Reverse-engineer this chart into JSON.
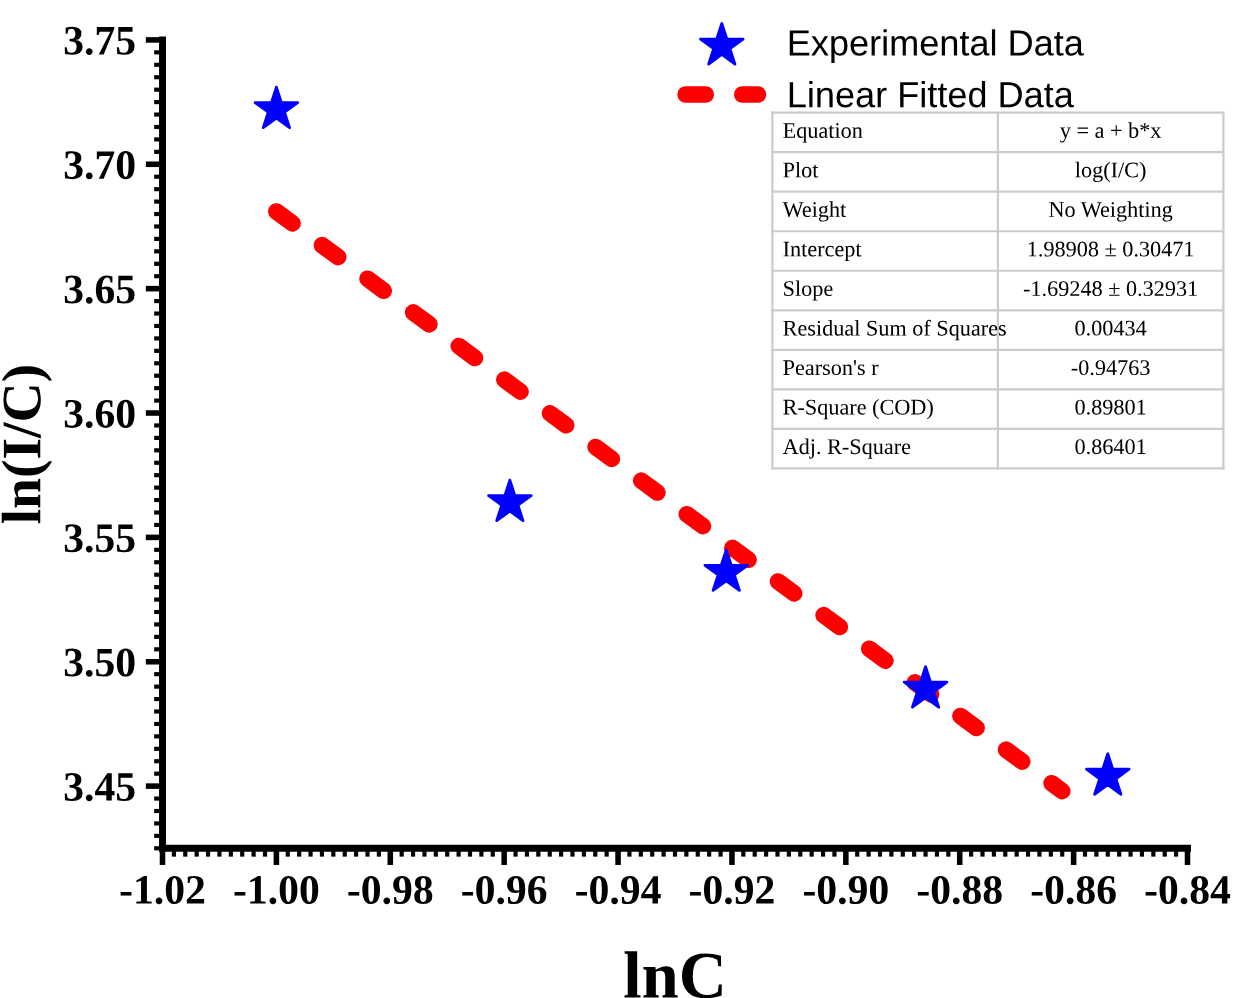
{
  "chart_data": {
    "type": "scatter",
    "xlabel": "lnC",
    "ylabel": "ln(I/C)",
    "xlim": [
      -1.02,
      -0.84
    ],
    "xticks": [
      {
        "value": -1.02,
        "label": "-1.02"
      },
      {
        "value": -1.0,
        "label": "-1.00"
      },
      {
        "value": -0.98,
        "label": "-0.98"
      },
      {
        "value": -0.96,
        "label": "-0.96"
      },
      {
        "value": -0.94,
        "label": "-0.94"
      },
      {
        "value": -0.92,
        "label": "-0.92"
      },
      {
        "value": -0.9,
        "label": "-0.90"
      },
      {
        "value": -0.88,
        "label": "-0.88"
      },
      {
        "value": -0.86,
        "label": "-0.86"
      },
      {
        "value": -0.84,
        "label": "-0.84"
      }
    ],
    "ylim": [
      3.425,
      3.75
    ],
    "yticks": [
      {
        "value": 3.45,
        "label": "3.45"
      },
      {
        "value": 3.5,
        "label": "3.50"
      },
      {
        "value": 3.55,
        "label": "3.55"
      },
      {
        "value": 3.6,
        "label": "3.60"
      },
      {
        "value": 3.65,
        "label": "3.65"
      },
      {
        "value": 3.7,
        "label": "3.70"
      },
      {
        "value": 3.75,
        "label": "3.75"
      }
    ],
    "legend": "top right",
    "grid": false,
    "series": [
      {
        "name": "Experimental Data",
        "marker": "star",
        "color": "#0000ff",
        "x": [
          -1.0,
          -0.959,
          -0.921,
          -0.886,
          -0.854
        ],
        "values": [
          3.722,
          3.564,
          3.536,
          3.489,
          3.454
        ]
      },
      {
        "name": "Linear Fitted Data",
        "type": "line",
        "marker": "none",
        "line_style": "dashed",
        "color": "#ff0000",
        "x": [
          -1.0,
          -0.862
        ],
        "values": [
          3.681,
          3.448
        ]
      }
    ],
    "annotations": [
      "Equation",
      "y = a + b*x",
      "Plot",
      "log(I/C)",
      "Weight",
      "No Weighting",
      "Intercept",
      "1.98908 ± 0.30471",
      "Slope",
      "-1.69248 ± 0.32931",
      "Residual Sum of Squares",
      "0.00434",
      "Pearson's r",
      "-0.94763",
      "R-Square (COD)",
      "0.89801",
      "Adj. R-Square",
      "0.86401"
    ]
  }
}
